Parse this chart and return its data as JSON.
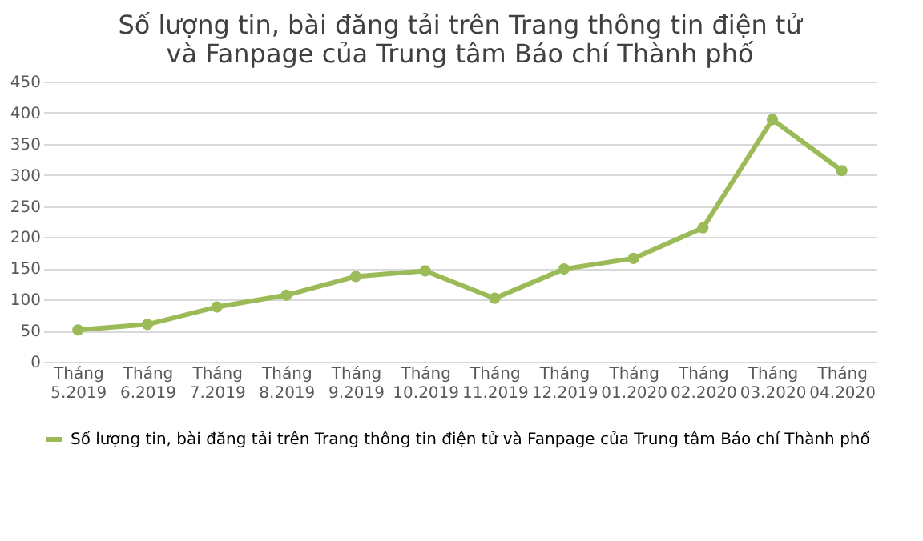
{
  "chart_data": {
    "type": "line",
    "title": "Số lượng tin, bài đăng tải trên Trang thông tin điện tử\nvà Fanpage của Trung tâm Báo chí Thành phố",
    "categories": [
      "Tháng 5.2019",
      "Tháng 6.2019",
      "Tháng 7.2019",
      "Tháng 8.2019",
      "Tháng 9.2019",
      "Tháng 10.2019",
      "Tháng 11.2019",
      "Tháng 12.2019",
      "Tháng 01.2020",
      "Tháng 02.2020",
      "Tháng 03.2020",
      "Tháng 04.2020"
    ],
    "series": [
      {
        "name": "Số lượng tin, bài đăng tải trên Trang thông tin điện tử và Fanpage của Trung tâm Báo chí Thành phố",
        "color": "#9bbb59",
        "values": [
          51,
          60,
          88,
          107,
          137,
          146,
          102,
          149,
          166,
          215,
          389,
          307
        ]
      }
    ],
    "ylim": [
      0,
      450
    ],
    "yticks": [
      0,
      50,
      100,
      150,
      200,
      250,
      300,
      350,
      400,
      450
    ],
    "grid": "y",
    "legend": "bottom",
    "marker": "circle",
    "line_style": "solid"
  }
}
